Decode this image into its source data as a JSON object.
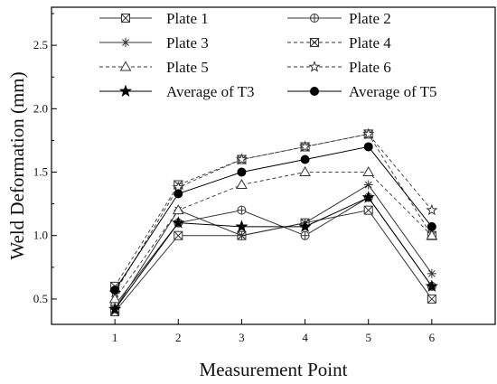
{
  "chart_data": {
    "type": "line",
    "title": "",
    "xlabel": "Measurement Point",
    "ylabel": "Weld Deformation (mm)",
    "x": [
      1,
      2,
      3,
      4,
      5,
      6
    ],
    "xlim": [
      0,
      7
    ],
    "ylim": [
      0.3,
      2.8
    ],
    "xticks": [
      1,
      2,
      3,
      4,
      5,
      6
    ],
    "yticks": [
      0.5,
      1.0,
      1.5,
      2.0,
      2.5
    ],
    "ytick_labels": [
      "0.5",
      "1.0",
      "1.5",
      "2.0",
      "2.5"
    ],
    "grid": false,
    "legend_position": "top",
    "series": [
      {
        "name": "Plate 1",
        "values": [
          0.4,
          1.0,
          1.0,
          1.1,
          1.2,
          0.5
        ],
        "marker": "boxed-x",
        "dash": "solid",
        "color": "#333333"
      },
      {
        "name": "Plate 2",
        "values": [
          0.45,
          1.1,
          1.2,
          1.0,
          1.3,
          0.6
        ],
        "marker": "circle-plus",
        "dash": "solid",
        "color": "#333333"
      },
      {
        "name": "Plate 3",
        "values": [
          0.42,
          1.2,
          1.0,
          1.1,
          1.4,
          0.7
        ],
        "marker": "asterisk",
        "dash": "solid",
        "color": "#333333"
      },
      {
        "name": "Plate 4",
        "values": [
          0.6,
          1.4,
          1.6,
          1.7,
          1.8,
          1.0
        ],
        "marker": "hourglass-x",
        "dash": "dashed",
        "color": "#333333"
      },
      {
        "name": "Plate 5",
        "values": [
          0.5,
          1.2,
          1.4,
          1.5,
          1.5,
          1.0
        ],
        "marker": "triangle-open",
        "dash": "dashed",
        "color": "#333333"
      },
      {
        "name": "Plate 6",
        "values": [
          0.55,
          1.38,
          1.6,
          1.7,
          1.8,
          1.2
        ],
        "marker": "star-open",
        "dash": "dashed",
        "color": "#333333"
      },
      {
        "name": "Average of T3",
        "values": [
          0.42,
          1.1,
          1.07,
          1.07,
          1.3,
          0.6
        ],
        "marker": "star-filled",
        "dash": "solid",
        "color": "#000000"
      },
      {
        "name": "Average of T5",
        "values": [
          0.57,
          1.33,
          1.5,
          1.6,
          1.7,
          1.07
        ],
        "marker": "circle-filled",
        "dash": "solid",
        "color": "#000000"
      }
    ]
  }
}
